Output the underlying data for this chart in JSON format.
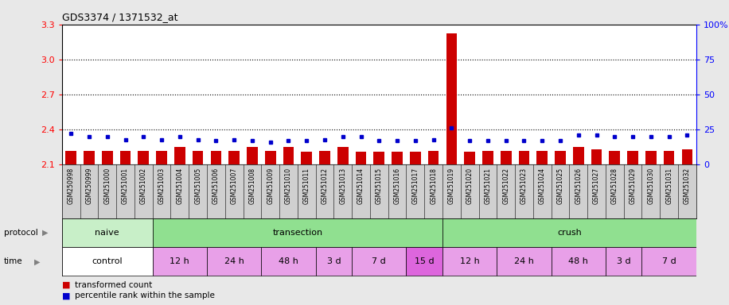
{
  "title": "GDS3374 / 1371532_at",
  "samples": [
    "GSM250998",
    "GSM250999",
    "GSM251000",
    "GSM251001",
    "GSM251002",
    "GSM251003",
    "GSM251004",
    "GSM251005",
    "GSM251006",
    "GSM251007",
    "GSM251008",
    "GSM251009",
    "GSM251010",
    "GSM251011",
    "GSM251012",
    "GSM251013",
    "GSM251014",
    "GSM251015",
    "GSM251016",
    "GSM251017",
    "GSM251018",
    "GSM251019",
    "GSM251020",
    "GSM251021",
    "GSM251022",
    "GSM251023",
    "GSM251024",
    "GSM251025",
    "GSM251026",
    "GSM251027",
    "GSM251028",
    "GSM251029",
    "GSM251030",
    "GSM251031",
    "GSM251032"
  ],
  "transformed_count": [
    2.22,
    2.22,
    2.22,
    2.22,
    2.22,
    2.22,
    2.25,
    2.22,
    2.22,
    2.22,
    2.25,
    2.22,
    2.25,
    2.21,
    2.22,
    2.25,
    2.21,
    2.21,
    2.21,
    2.21,
    2.22,
    3.22,
    2.21,
    2.22,
    2.22,
    2.22,
    2.22,
    2.22,
    2.25,
    2.23,
    2.22,
    2.22,
    2.22,
    2.22,
    2.23
  ],
  "percentile_rank": [
    22,
    20,
    20,
    18,
    20,
    18,
    20,
    18,
    17,
    18,
    17,
    16,
    17,
    17,
    18,
    20,
    20,
    17,
    17,
    17,
    18,
    26,
    17,
    17,
    17,
    17,
    17,
    17,
    21,
    21,
    20,
    20,
    20,
    20,
    21
  ],
  "y_min": 2.1,
  "y_max": 3.3,
  "y_ticks_left": [
    2.1,
    2.4,
    2.7,
    3.0,
    3.3
  ],
  "y_ticks_right": [
    0,
    25,
    50,
    75,
    100
  ],
  "bar_color": "#cc0000",
  "dot_color": "#0000cc",
  "protocol_groups": [
    {
      "label": "naive",
      "start": 0,
      "end": 4,
      "color": "#c8efc8"
    },
    {
      "label": "transection",
      "start": 5,
      "end": 20,
      "color": "#90e090"
    },
    {
      "label": "crush",
      "start": 21,
      "end": 34,
      "color": "#90e090"
    }
  ],
  "time_groups": [
    {
      "label": "control",
      "start": 0,
      "end": 4,
      "color": "#ffffff"
    },
    {
      "label": "12 h",
      "start": 5,
      "end": 7,
      "color": "#e8a0e8"
    },
    {
      "label": "24 h",
      "start": 8,
      "end": 10,
      "color": "#e8a0e8"
    },
    {
      "label": "48 h",
      "start": 11,
      "end": 13,
      "color": "#e8a0e8"
    },
    {
      "label": "3 d",
      "start": 14,
      "end": 15,
      "color": "#e8a0e8"
    },
    {
      "label": "7 d",
      "start": 16,
      "end": 18,
      "color": "#e8a0e8"
    },
    {
      "label": "15 d",
      "start": 19,
      "end": 20,
      "color": "#dd66dd"
    },
    {
      "label": "12 h",
      "start": 21,
      "end": 23,
      "color": "#e8a0e8"
    },
    {
      "label": "24 h",
      "start": 24,
      "end": 26,
      "color": "#e8a0e8"
    },
    {
      "label": "48 h",
      "start": 27,
      "end": 29,
      "color": "#e8a0e8"
    },
    {
      "label": "3 d",
      "start": 30,
      "end": 31,
      "color": "#e8a0e8"
    },
    {
      "label": "7 d",
      "start": 32,
      "end": 34,
      "color": "#e8a0e8"
    }
  ],
  "bg_color": "#e8e8e8",
  "plot_bg": "#ffffff",
  "xlabel_bg": "#d0d0d0"
}
